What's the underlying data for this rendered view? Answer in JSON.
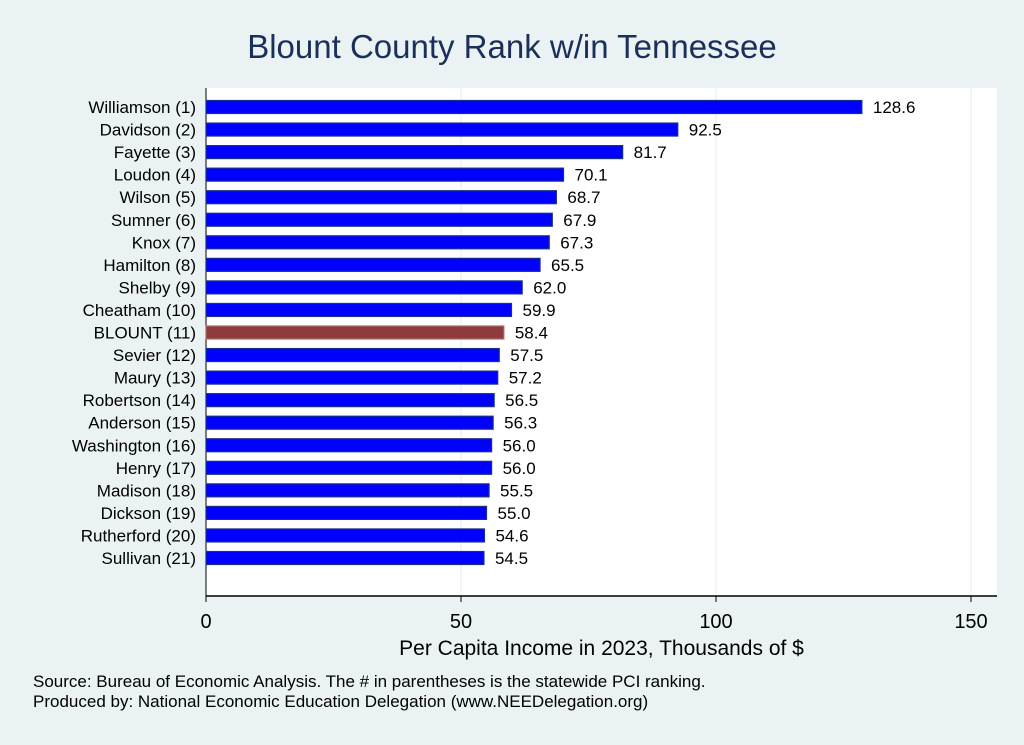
{
  "chart_data": {
    "type": "bar",
    "orientation": "horizontal",
    "title": "Blount County Rank w/in Tennessee",
    "xlabel": "Per Capita Income in 2023, Thousands of $",
    "ylabel": "",
    "xlim": [
      0,
      155
    ],
    "xticks": [
      0,
      50,
      100,
      150
    ],
    "grid": true,
    "categories": [
      "Williamson  (1)",
      "Davidson  (2)",
      "Fayette  (3)",
      "Loudon  (4)",
      "Wilson  (5)",
      "Sumner  (6)",
      "Knox  (7)",
      "Hamilton  (8)",
      "Shelby  (9)",
      "Cheatham (10)",
      "BLOUNT (11)",
      "Sevier (12)",
      "Maury (13)",
      "Robertson (14)",
      "Anderson (15)",
      "Washington (16)",
      "Henry (17)",
      "Madison (18)",
      "Dickson (19)",
      "Rutherford (20)",
      "Sullivan (21)"
    ],
    "values": [
      128.6,
      92.5,
      81.7,
      70.1,
      68.7,
      67.9,
      67.3,
      65.5,
      62.0,
      59.9,
      58.4,
      57.5,
      57.2,
      56.5,
      56.3,
      56.0,
      56.0,
      55.5,
      55.0,
      54.6,
      54.5
    ],
    "value_labels": [
      "128.6",
      "92.5",
      "81.7",
      "70.1",
      "68.7",
      "67.9",
      "67.3",
      "65.5",
      "62.0",
      "59.9",
      "58.4",
      "57.5",
      "57.2",
      "56.5",
      "56.3",
      "56.0",
      "56.0",
      "55.5",
      "55.0",
      "54.6",
      "54.5"
    ],
    "highlight": "BLOUNT (11)",
    "colors": {
      "bar": "#0000ff",
      "highlight": "#8f3a3c",
      "bar_edge": "#1a2f8a"
    }
  },
  "notes": {
    "source": "Source: Bureau of Economic Analysis. The # in parentheses is the statewide PCI ranking.",
    "produced": "Produced by: National Economic Education Delegation (www.NEEDelegation.org)"
  }
}
